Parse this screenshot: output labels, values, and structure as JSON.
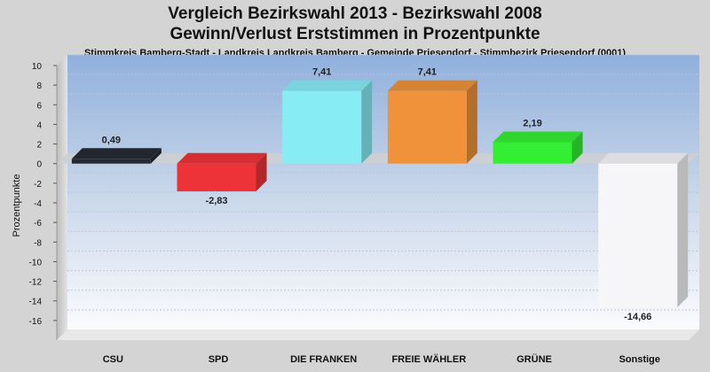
{
  "chart_data": {
    "type": "bar",
    "title": "Vergleich Bezirkswahl 2013 - Bezirkswahl 2008",
    "subtitle": "Gewinn/Verlust Erststimmen in Prozentpunkte",
    "caption": "Stimmkreis Bamberg-Stadt - Landkreis Landkreis Bamberg - Gemeinde Priesendorf - Stimmbezirk Priesendorf (0001)",
    "ylabel": "Prozentpunkte",
    "xlabel": "",
    "ylim": [
      -18,
      10
    ],
    "yticks": [
      10,
      8,
      6,
      4,
      2,
      0,
      -2,
      -4,
      -6,
      -8,
      -10,
      -12,
      -14,
      -16
    ],
    "ytick_labels": [
      "10",
      "8",
      "6",
      "4",
      "2",
      "0",
      "-2",
      "-4",
      "-6",
      "-8",
      "-10",
      "-12",
      "-14",
      "-16"
    ],
    "grid": true,
    "categories": [
      "CSU",
      "SPD",
      "DIE FRANKEN",
      "FREIE WÄHLER",
      "GRÜNE",
      "Sonstige"
    ],
    "values": [
      0.49,
      -2.83,
      7.41,
      7.41,
      2.19,
      -14.66
    ],
    "value_labels": [
      "0,49",
      "-2,83",
      "7,41",
      "7,41",
      "2,19",
      "-14,66"
    ],
    "colors": [
      "#262a33",
      "#ee3338",
      "#88ecf5",
      "#ef923a",
      "#33ee33",
      "#f6f6f8"
    ]
  }
}
